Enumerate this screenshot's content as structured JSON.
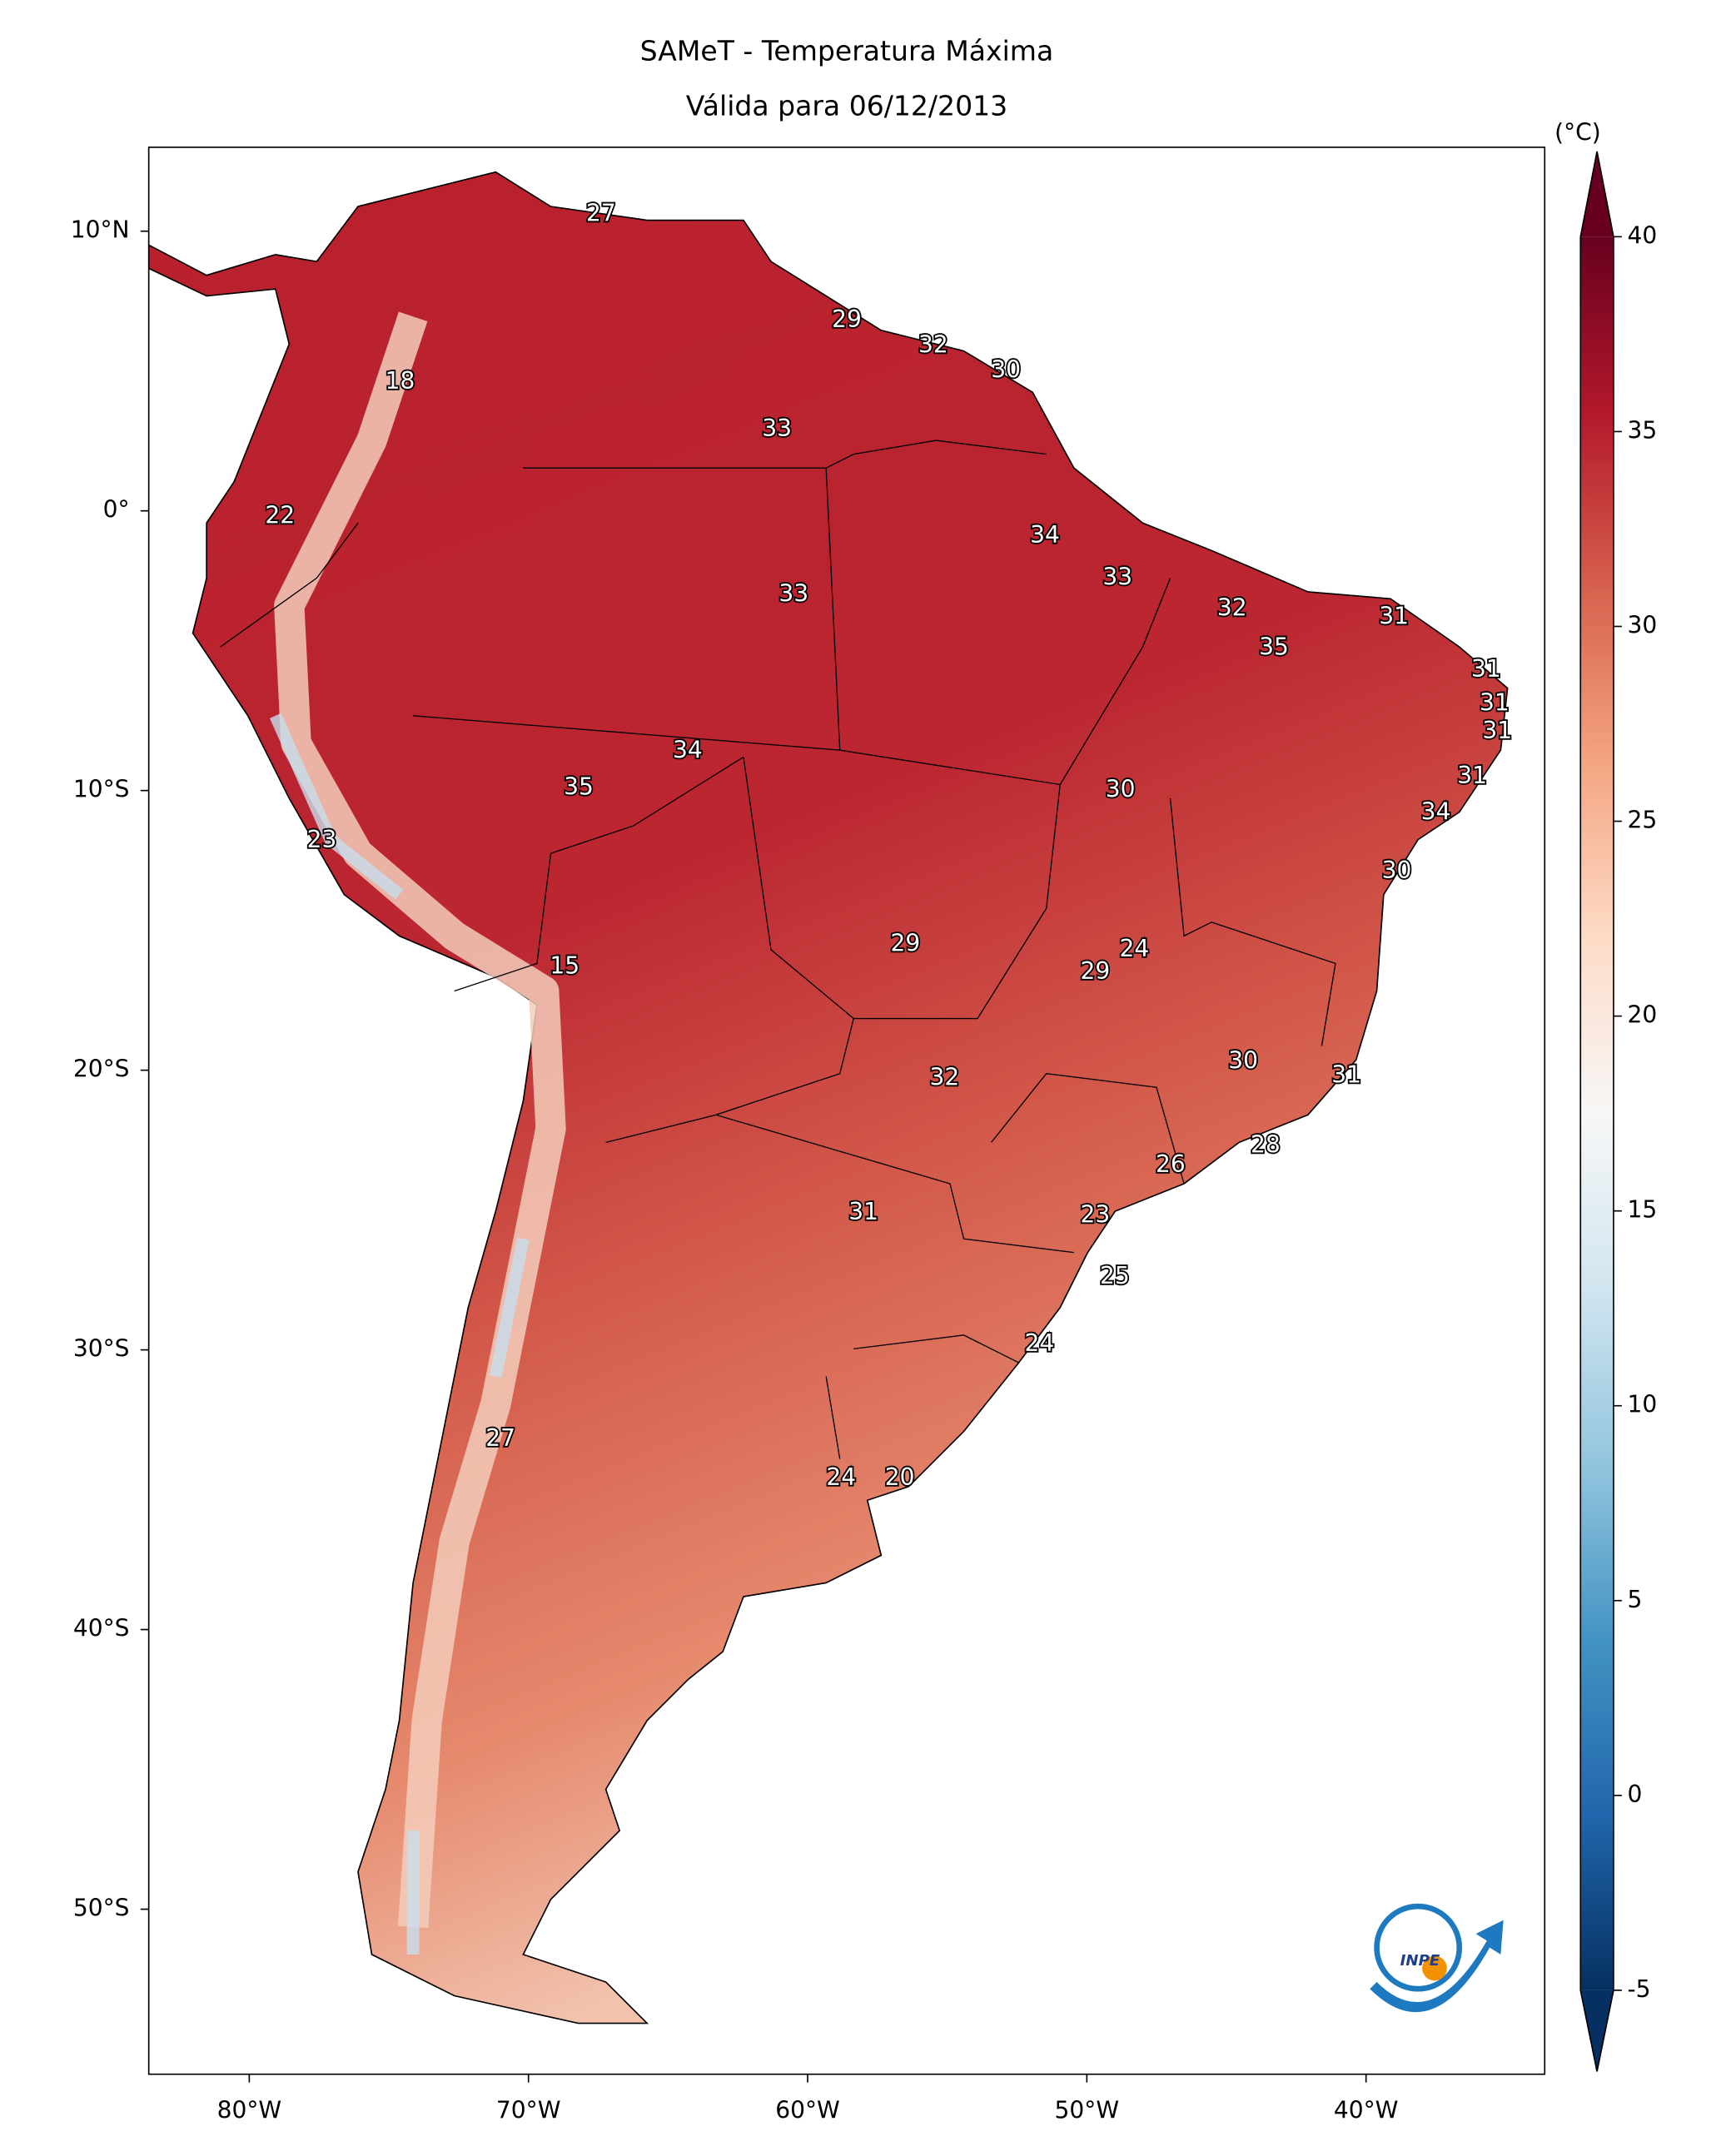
{
  "chart_data": {
    "type": "map",
    "title": "SAMeT - Temperatura Máxima",
    "subtitle": "Válida para 06/12/2013",
    "xlim": [
      -83.6,
      -33.6
    ],
    "ylim": [
      -55.9,
      13
    ],
    "xticks": [
      {
        "value": -80,
        "label": "80°W"
      },
      {
        "value": -70,
        "label": "70°W"
      },
      {
        "value": -60,
        "label": "60°W"
      },
      {
        "value": -50,
        "label": "50°W"
      },
      {
        "value": -40,
        "label": "40°W"
      }
    ],
    "yticks": [
      {
        "value": 10,
        "label": "10°N"
      },
      {
        "value": 0,
        "label": "0°"
      },
      {
        "value": -10,
        "label": "10°S"
      },
      {
        "value": -20,
        "label": "20°S"
      },
      {
        "value": -30,
        "label": "30°S"
      },
      {
        "value": -40,
        "label": "40°S"
      },
      {
        "value": -50,
        "label": "50°S"
      }
    ],
    "colorbar": {
      "label": "(°C)",
      "lim": [
        -5,
        40
      ],
      "ticks": [
        -5,
        0,
        5,
        10,
        15,
        20,
        25,
        30,
        35,
        40
      ],
      "colors": [
        "#053061",
        "#2166ac",
        "#4393c3",
        "#92c5de",
        "#d1e5f0",
        "#f7f7f7",
        "#fddbc7",
        "#f4a582",
        "#d6604d",
        "#b2182b",
        "#67001f"
      ]
    },
    "stations": [
      {
        "lon": -67.4,
        "lat": 10.6,
        "value": 27
      },
      {
        "lon": -58.6,
        "lat": 6.8,
        "value": 29
      },
      {
        "lon": -55.5,
        "lat": 5.9,
        "value": 32
      },
      {
        "lon": -52.9,
        "lat": 5.0,
        "value": 30
      },
      {
        "lon": -74.6,
        "lat": 4.6,
        "value": 18
      },
      {
        "lon": -61.1,
        "lat": 2.9,
        "value": 33
      },
      {
        "lon": -78.9,
        "lat": -0.2,
        "value": 22
      },
      {
        "lon": -51.5,
        "lat": -0.9,
        "value": 34
      },
      {
        "lon": -48.9,
        "lat": -2.4,
        "value": 33
      },
      {
        "lon": -44.8,
        "lat": -3.5,
        "value": 32
      },
      {
        "lon": -60.5,
        "lat": -3.0,
        "value": 33
      },
      {
        "lon": -39.0,
        "lat": -3.8,
        "value": 31
      },
      {
        "lon": -43.3,
        "lat": -4.9,
        "value": 35
      },
      {
        "lon": -35.7,
        "lat": -5.7,
        "value": 31
      },
      {
        "lon": -35.4,
        "lat": -6.9,
        "value": 31
      },
      {
        "lon": -35.3,
        "lat": -7.9,
        "value": 31
      },
      {
        "lon": -64.3,
        "lat": -8.6,
        "value": 34
      },
      {
        "lon": -68.2,
        "lat": -9.9,
        "value": 35
      },
      {
        "lon": -48.8,
        "lat": -10.0,
        "value": 30
      },
      {
        "lon": -36.2,
        "lat": -9.5,
        "value": 31
      },
      {
        "lon": -37.5,
        "lat": -10.8,
        "value": 34
      },
      {
        "lon": -77.4,
        "lat": -11.8,
        "value": 23
      },
      {
        "lon": -38.9,
        "lat": -12.9,
        "value": 30
      },
      {
        "lon": -56.5,
        "lat": -15.5,
        "value": 29
      },
      {
        "lon": -48.3,
        "lat": -15.7,
        "value": 24
      },
      {
        "lon": -49.7,
        "lat": -16.5,
        "value": 29
      },
      {
        "lon": -68.7,
        "lat": -16.3,
        "value": 15
      },
      {
        "lon": -55.1,
        "lat": -20.3,
        "value": 32
      },
      {
        "lon": -44.4,
        "lat": -19.7,
        "value": 30
      },
      {
        "lon": -40.7,
        "lat": -20.2,
        "value": 31
      },
      {
        "lon": -43.6,
        "lat": -22.7,
        "value": 28
      },
      {
        "lon": -47.0,
        "lat": -23.4,
        "value": 26
      },
      {
        "lon": -58.0,
        "lat": -25.1,
        "value": 31
      },
      {
        "lon": -49.7,
        "lat": -25.2,
        "value": 23
      },
      {
        "lon": -49.0,
        "lat": -27.4,
        "value": 25
      },
      {
        "lon": -51.7,
        "lat": -29.8,
        "value": 24
      },
      {
        "lon": -71.0,
        "lat": -33.2,
        "value": 27
      },
      {
        "lon": -58.8,
        "lat": -34.6,
        "value": 24
      },
      {
        "lon": -56.7,
        "lat": -34.6,
        "value": 20
      }
    ],
    "logo": "INPE"
  }
}
